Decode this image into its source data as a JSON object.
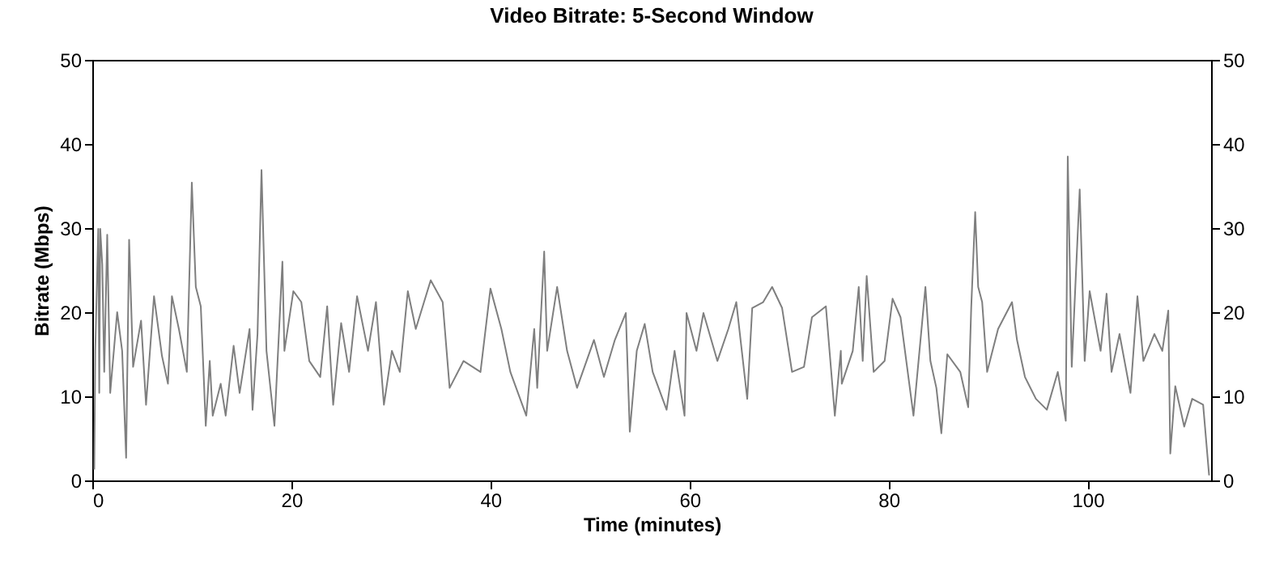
{
  "chart_data": {
    "type": "line",
    "title": "Video Bitrate: 5-Second Window",
    "xlabel": "Time (minutes)",
    "ylabel": "Bitrate (Mbps)",
    "xlim": [
      0,
      112.4
    ],
    "xticks": [
      0,
      20,
      40,
      60,
      80,
      100
    ],
    "ylim": [
      0,
      50
    ],
    "yticks": [
      0,
      10,
      20,
      30,
      40,
      50
    ],
    "y2lim": [
      0,
      50
    ],
    "y2ticks": [
      0,
      10,
      20,
      30,
      40,
      50
    ],
    "x": [
      0.2,
      0.3,
      0.6,
      0.7,
      0.8,
      1.0,
      1.2,
      1.5,
      1.8,
      2.5,
      3.0,
      3.4,
      3.7,
      4.1,
      4.9,
      5.4,
      6.2,
      7.0,
      7.6,
      8.0,
      8.7,
      9.5,
      10.0,
      10.4,
      10.9,
      11.4,
      11.8,
      12.1,
      12.9,
      13.4,
      14.2,
      14.8,
      15.8,
      16.1,
      16.6,
      17.0,
      17.5,
      18.3,
      19.1,
      19.3,
      20.2,
      21.0,
      21.8,
      22.9,
      23.6,
      24.2,
      25.0,
      25.8,
      26.6,
      27.7,
      28.5,
      29.3,
      30.1,
      30.9,
      31.7,
      32.5,
      34.0,
      35.2,
      35.9,
      37.3,
      39.0,
      40.0,
      41.1,
      42.0,
      43.6,
      44.4,
      44.7,
      45.4,
      45.7,
      46.7,
      47.7,
      48.7,
      50.4,
      51.4,
      52.5,
      53.6,
      54.0,
      54.7,
      55.5,
      56.3,
      57.7,
      58.5,
      59.5,
      59.7,
      60.7,
      61.4,
      62.8,
      63.9,
      64.7,
      65.8,
      66.3,
      67.4,
      68.3,
      69.3,
      70.3,
      71.5,
      72.3,
      73.7,
      74.6,
      75.2,
      75.3,
      76.4,
      77.0,
      77.4,
      77.8,
      78.5,
      79.6,
      80.4,
      81.2,
      82.5,
      83.7,
      84.2,
      84.8,
      85.3,
      85.9,
      87.2,
      88.0,
      88.3,
      88.7,
      89.0,
      89.4,
      89.9,
      91.0,
      92.4,
      92.9,
      93.7,
      94.8,
      95.9,
      97.0,
      97.8,
      98.0,
      98.4,
      99.2,
      99.7,
      100.2,
      101.3,
      101.9,
      102.4,
      103.2,
      104.3,
      105.0,
      105.6,
      106.7,
      107.5,
      108.1,
      108.3,
      108.8,
      109.7,
      110.5,
      111.6,
      112.2
    ],
    "series": [
      {
        "color": "#7f7f7f",
        "values": [
          1.3,
          15.4,
          29.9,
          10.4,
          29.9,
          25.7,
          12.9,
          29.2,
          10.4,
          20,
          15.4,
          2.7,
          28.6,
          13.5,
          19,
          9,
          21.9,
          14.8,
          11.5,
          21.9,
          18,
          12.9,
          35.4,
          23,
          20.7,
          6.5,
          14.2,
          7.7,
          11.5,
          7.7,
          16,
          10.4,
          18,
          8.4,
          17.4,
          36.9,
          15.4,
          6.5,
          26,
          15.4,
          22.5,
          21.2,
          14.2,
          12.3,
          20.7,
          9,
          18.7,
          12.9,
          21.9,
          15.4,
          21.2,
          9,
          15.4,
          12.9,
          22.5,
          18,
          23.8,
          21.2,
          11,
          14.2,
          12.9,
          22.8,
          18,
          12.9,
          7.7,
          18,
          11,
          27.2,
          15.4,
          23,
          15.4,
          11,
          16.7,
          12.3,
          16.7,
          19.9,
          5.8,
          15.4,
          18.6,
          12.9,
          8.4,
          15.4,
          7.7,
          19.9,
          15.4,
          19.9,
          14.2,
          18,
          21.2,
          9.7,
          20.5,
          21.2,
          23,
          20.5,
          12.9,
          13.5,
          19.4,
          20.7,
          7.7,
          15.4,
          11.5,
          15.4,
          23,
          14.2,
          24.3,
          12.9,
          14.2,
          21.6,
          19.4,
          7.7,
          23,
          14.2,
          11,
          5.6,
          15,
          12.9,
          8.7,
          20.5,
          31.9,
          23,
          21.2,
          12.9,
          18,
          21.2,
          16.7,
          12.3,
          9.7,
          8.4,
          12.9,
          7.1,
          38.5,
          13.5,
          34.6,
          14.2,
          22.5,
          15.4,
          22.2,
          12.9,
          17.4,
          10.4,
          21.9,
          14.2,
          17.4,
          15.4,
          20.2,
          3.2,
          11.2,
          6.4,
          9.7,
          9,
          0.6
        ]
      }
    ]
  }
}
